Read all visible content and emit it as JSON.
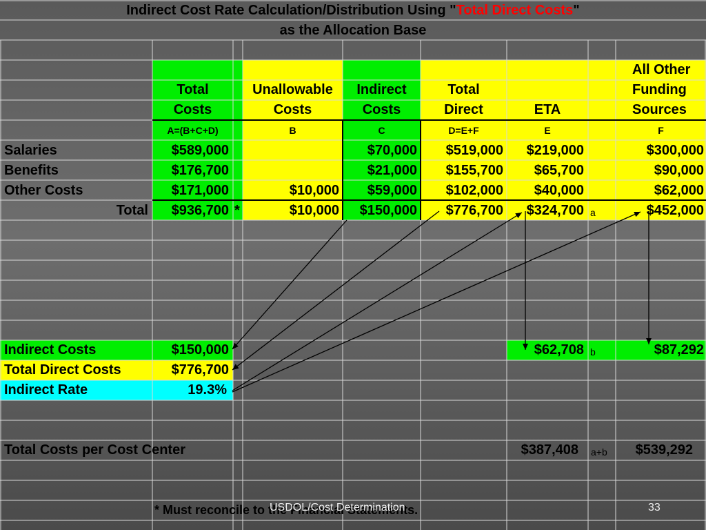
{
  "title": {
    "prefix": "Indirect Cost Rate Calculation/Distribution Using \"",
    "highlight": "Total Direct Costs",
    "suffix": "\"",
    "line2": "as the Allocation Base"
  },
  "headers": {
    "total": [
      "Total",
      "Costs"
    ],
    "unallowable": [
      "Unallowable",
      "Costs"
    ],
    "indirect": [
      "Indirect",
      "Costs"
    ],
    "total_direct": [
      "Total",
      "Direct"
    ],
    "eta": "ETA",
    "other": [
      "All Other",
      "Funding",
      "Sources"
    ]
  },
  "formulas": {
    "a": "A=(B+C+D)",
    "b": "B",
    "c": "C",
    "d": "D=E+F",
    "e": "E",
    "f": "F"
  },
  "rows": [
    {
      "label": "Salaries",
      "a": "$589,000",
      "b": "",
      "c": "$70,000",
      "d": "$519,000",
      "e": "$219,000",
      "f": "$300,000"
    },
    {
      "label": "Benefits",
      "a": "$176,700",
      "b": "",
      "c": "$21,000",
      "d": "$155,700",
      "e": "$65,700",
      "f": "$90,000"
    },
    {
      "label": "Other Costs",
      "a": "$171,000",
      "b": "$10,000",
      "c": "$59,000",
      "d": "$102,000",
      "e": "$40,000",
      "f": "$62,000"
    }
  ],
  "total_row": {
    "label": "Total",
    "a": "$936,700",
    "star": "*",
    "b": "$10,000",
    "c": "$150,000",
    "d": "$776,700",
    "e": "$324,700",
    "e_note": "a",
    "f": "$452,000"
  },
  "summary": {
    "indirect_label": "Indirect Costs",
    "indirect_value": "$150,000",
    "tdc_label": "Total Direct Costs",
    "tdc_value": "$776,700",
    "rate_label": "Indirect Rate",
    "rate_value": "19.3%",
    "eta_alloc": "$62,708",
    "eta_alloc_note": "b",
    "other_alloc": "$87,292"
  },
  "cost_center": {
    "label": "Total Costs per Cost Center",
    "eta": "$387,408",
    "note": "a+b",
    "other": "$539,292"
  },
  "footer": {
    "note": "*  Must reconcile to the Financial Statements.",
    "source": "USDOL/Cost Determination",
    "page": "33"
  },
  "colors": {
    "green": "#00ee00",
    "yellow": "#ffff00",
    "cyan": "#00ffff",
    "red": "#ff0000"
  }
}
